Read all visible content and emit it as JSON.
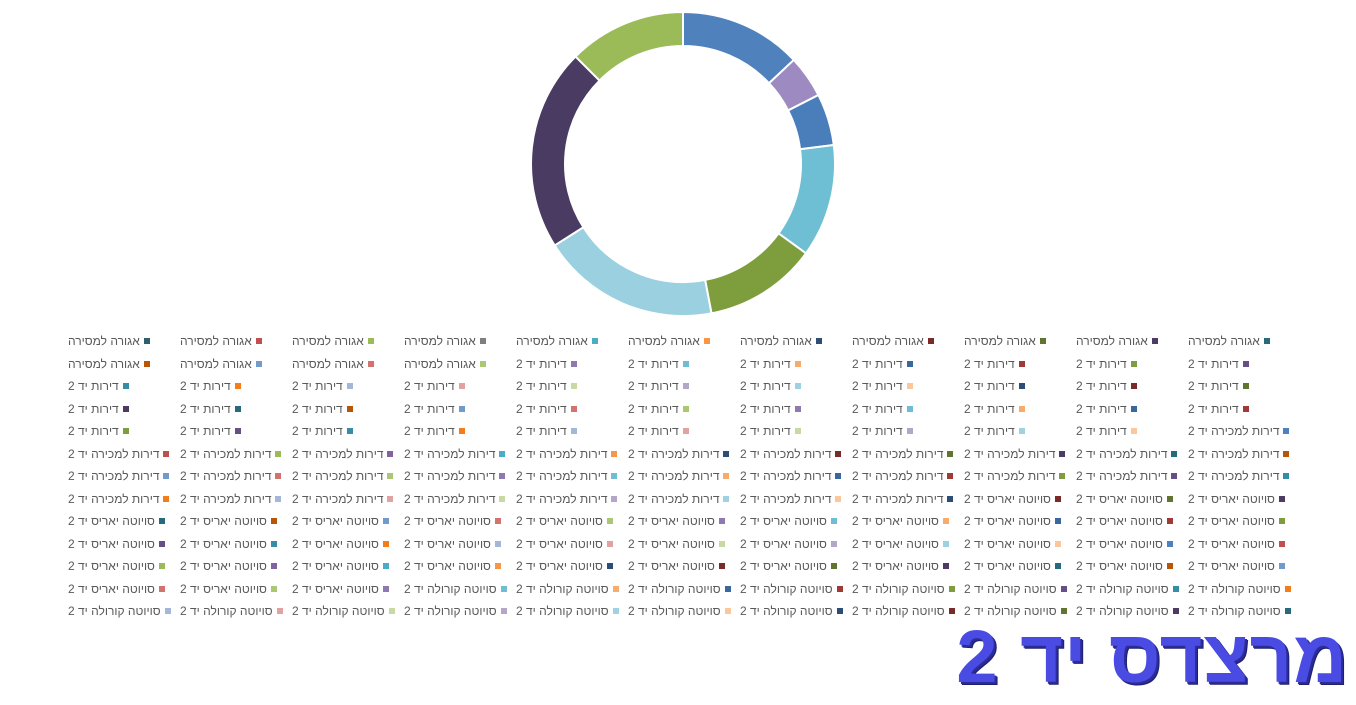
{
  "chart_data": {
    "type": "pie",
    "variant": "doughnut",
    "slices": [
      {
        "value": 13.0,
        "color": "#4f81bd"
      },
      {
        "value": 4.5,
        "color": "#9d8ac1"
      },
      {
        "value": 5.5,
        "color": "#4a7ebb"
      },
      {
        "value": 12.0,
        "color": "#6fbfd4"
      },
      {
        "value": 12.0,
        "color": "#7e9e3e"
      },
      {
        "value": 19.0,
        "color": "#9ad0e0"
      },
      {
        "value": 21.5,
        "color": "#4a3b63"
      },
      {
        "value": 12.5,
        "color": "#9bbb59"
      }
    ],
    "legend_position": "bottom",
    "legend_columns": 11,
    "legend": [
      {
        "label": "אגורה למסירה",
        "color": "#2f5f6b"
      },
      {
        "label": "אגורה למסירה",
        "color": "#c0504d"
      },
      {
        "label": "אגורה למסירה",
        "color": "#9bbb59"
      },
      {
        "label": "אגורה למסירה",
        "color": "#7f7f7f"
      },
      {
        "label": "אגורה למסירה",
        "color": "#4bacc6"
      },
      {
        "label": "אגורה למסירה",
        "color": "#f79646"
      },
      {
        "label": "אגורה למסירה",
        "color": "#2c4d75"
      },
      {
        "label": "אגורה למסירה",
        "color": "#772c2a"
      },
      {
        "label": "אגורה למסירה",
        "color": "#5f7530"
      },
      {
        "label": "אגורה למסירה",
        "color": "#4d3b62"
      },
      {
        "label": "אגורה למסירה",
        "color": "#276a7c"
      },
      {
        "label": "אגורה למסירה",
        "color": "#b65708"
      },
      {
        "label": "אגורה למסירה",
        "color": "#729aca"
      },
      {
        "label": "אגורה למסירה",
        "color": "#d47270"
      },
      {
        "label": "אגורה למסירה",
        "color": "#acc774"
      },
      {
        "label": "דירות יד 2",
        "color": "#8e7aae"
      },
      {
        "label": "דירות יד 2",
        "color": "#6fbcd4"
      },
      {
        "label": "דירות יד 2",
        "color": "#f9ab6b"
      },
      {
        "label": "דירות יד 2",
        "color": "#3a679c"
      },
      {
        "label": "דירות יד 2",
        "color": "#9e3b38"
      },
      {
        "label": "דירות יד 2",
        "color": "#7e9c40"
      },
      {
        "label": "דירות יד 2",
        "color": "#664f83"
      },
      {
        "label": "דירות יד 2",
        "color": "#358ea6"
      },
      {
        "label": "דירות יד 2",
        "color": "#f37c1b"
      },
      {
        "label": "דירות יד 2",
        "color": "#a3b7d9"
      },
      {
        "label": "דירות יד 2",
        "color": "#e0a3a2"
      },
      {
        "label": "דירות יד 2",
        "color": "#c8d9a4"
      },
      {
        "label": "דירות יד 2",
        "color": "#b2a6c9"
      },
      {
        "label": "דירות יד 2",
        "color": "#9fd1e2"
      },
      {
        "label": "דירות יד 2",
        "color": "#fbc79c"
      },
      {
        "label": "דירות יד 2",
        "color": "#2c4d75"
      },
      {
        "label": "דירות יד 2",
        "color": "#772c2a"
      },
      {
        "label": "דירות יד 2",
        "color": "#5f7530"
      },
      {
        "label": "דירות יד 2",
        "color": "#4d3b62"
      },
      {
        "label": "דירות יד 2",
        "color": "#276a7c"
      },
      {
        "label": "דירות יד 2",
        "color": "#b65708"
      },
      {
        "label": "דירות יד 2",
        "color": "#729aca"
      },
      {
        "label": "דירות יד 2",
        "color": "#d47270"
      },
      {
        "label": "דירות יד 2",
        "color": "#acc774"
      },
      {
        "label": "דירות יד 2",
        "color": "#8e7aae"
      },
      {
        "label": "דירות יד 2",
        "color": "#6fbcd4"
      },
      {
        "label": "דירות יד 2",
        "color": "#f9ab6b"
      },
      {
        "label": "דירות יד 2",
        "color": "#3a679c"
      },
      {
        "label": "דירות יד 2",
        "color": "#9e3b38"
      },
      {
        "label": "דירות יד 2",
        "color": "#7e9c40"
      },
      {
        "label": "דירות יד 2",
        "color": "#664f83"
      },
      {
        "label": "דירות יד 2",
        "color": "#358ea6"
      },
      {
        "label": "דירות יד 2",
        "color": "#f37c1b"
      },
      {
        "label": "דירות יד 2",
        "color": "#a3b7d9"
      },
      {
        "label": "דירות יד 2",
        "color": "#e0a3a2"
      },
      {
        "label": "דירות יד 2",
        "color": "#c8d9a4"
      },
      {
        "label": "דירות יד 2",
        "color": "#b2a6c9"
      },
      {
        "label": "דירות יד 2",
        "color": "#9fd1e2"
      },
      {
        "label": "דירות יד 2",
        "color": "#fbc79c"
      },
      {
        "label": "דירות למכירה יד 2",
        "color": "#4f81bd"
      },
      {
        "label": "דירות למכירה יד 2",
        "color": "#c0504d"
      },
      {
        "label": "דירות למכירה יד 2",
        "color": "#9bbb59"
      },
      {
        "label": "דירות למכירה יד 2",
        "color": "#8064a2"
      },
      {
        "label": "דירות למכירה יד 2",
        "color": "#4bacc6"
      },
      {
        "label": "דירות למכירה יד 2",
        "color": "#f79646"
      },
      {
        "label": "דירות למכירה יד 2",
        "color": "#2c4d75"
      },
      {
        "label": "דירות למכירה יד 2",
        "color": "#772c2a"
      },
      {
        "label": "דירות למכירה יד 2",
        "color": "#5f7530"
      },
      {
        "label": "דירות למכירה יד 2",
        "color": "#4d3b62"
      },
      {
        "label": "דירות למכירה יד 2",
        "color": "#276a7c"
      },
      {
        "label": "דירות למכירה יד 2",
        "color": "#b65708"
      },
      {
        "label": "דירות למכירה יד 2",
        "color": "#729aca"
      },
      {
        "label": "דירות למכירה יד 2",
        "color": "#d47270"
      },
      {
        "label": "דירות למכירה יד 2",
        "color": "#acc774"
      },
      {
        "label": "דירות למכירה יד 2",
        "color": "#8e7aae"
      },
      {
        "label": "דירות למכירה יד 2",
        "color": "#6fbcd4"
      },
      {
        "label": "דירות למכירה יד 2",
        "color": "#f9ab6b"
      },
      {
        "label": "דירות למכירה יד 2",
        "color": "#3a679c"
      },
      {
        "label": "דירות למכירה יד 2",
        "color": "#9e3b38"
      },
      {
        "label": "דירות למכירה יד 2",
        "color": "#7e9c40"
      },
      {
        "label": "דירות למכירה יד 2",
        "color": "#664f83"
      },
      {
        "label": "דירות למכירה יד 2",
        "color": "#358ea6"
      },
      {
        "label": "דירות למכירה יד 2",
        "color": "#f37c1b"
      },
      {
        "label": "דירות למכירה יד 2",
        "color": "#a3b7d9"
      },
      {
        "label": "דירות למכירה יד 2",
        "color": "#e0a3a2"
      },
      {
        "label": "דירות למכירה יד 2",
        "color": "#c8d9a4"
      },
      {
        "label": "דירות למכירה יד 2",
        "color": "#b2a6c9"
      },
      {
        "label": "דירות למכירה יד 2",
        "color": "#9fd1e2"
      },
      {
        "label": "דירות למכירה יד 2",
        "color": "#fbc79c"
      },
      {
        "label": "דירות למכירה יד 2",
        "color": "#2c4d75"
      },
      {
        "label": "סויוטה יאריס יד 2",
        "color": "#772c2a"
      },
      {
        "label": "סויוטה יאריס יד 2",
        "color": "#5f7530"
      },
      {
        "label": "סויוטה יאריס יד 2",
        "color": "#4d3b62"
      },
      {
        "label": "סויוטה יאריס יד 2",
        "color": "#276a7c"
      },
      {
        "label": "סויוטה יאריס יד 2",
        "color": "#b65708"
      },
      {
        "label": "סויוטה יאריס יד 2",
        "color": "#729aca"
      },
      {
        "label": "סויוטה יאריס יד 2",
        "color": "#d47270"
      },
      {
        "label": "סויוטה יאריס יד 2",
        "color": "#acc774"
      },
      {
        "label": "סויוטה יאריס יד 2",
        "color": "#8e7aae"
      },
      {
        "label": "סויוטה יאריס יד 2",
        "color": "#6fbcd4"
      },
      {
        "label": "סויוטה יאריס יד 2",
        "color": "#f9ab6b"
      },
      {
        "label": "סויוטה יאריס יד 2",
        "color": "#3a679c"
      },
      {
        "label": "סויוטה יאריס יד 2",
        "color": "#9e3b38"
      },
      {
        "label": "סויוטה יאריס יד 2",
        "color": "#7e9c40"
      },
      {
        "label": "סויוטה יאריס יד 2",
        "color": "#664f83"
      },
      {
        "label": "סויוטה יאריס יד 2",
        "color": "#358ea6"
      },
      {
        "label": "סויוטה יאריס יד 2",
        "color": "#f37c1b"
      },
      {
        "label": "סויוטה יאריס יד 2",
        "color": "#a3b7d9"
      },
      {
        "label": "סויוטה יאריס יד 2",
        "color": "#e0a3a2"
      },
      {
        "label": "סויוטה יאריס יד 2",
        "color": "#c8d9a4"
      },
      {
        "label": "סויוטה יאריס יד 2",
        "color": "#b2a6c9"
      },
      {
        "label": "סויוטה יאריס יד 2",
        "color": "#9fd1e2"
      },
      {
        "label": "סויוטה יאריס יד 2",
        "color": "#fbc79c"
      },
      {
        "label": "סויוטה יאריס יד 2",
        "color": "#4f81bd"
      },
      {
        "label": "סויוטה יאריס יד 2",
        "color": "#c0504d"
      },
      {
        "label": "סויוטה יאריס יד 2",
        "color": "#9bbb59"
      },
      {
        "label": "סויוטה יאריס יד 2",
        "color": "#8064a2"
      },
      {
        "label": "סויוטה יאריס יד 2",
        "color": "#4bacc6"
      },
      {
        "label": "סויוטה יאריס יד 2",
        "color": "#f79646"
      },
      {
        "label": "סויוטה יאריס יד 2",
        "color": "#2c4d75"
      },
      {
        "label": "סויוטה יאריס יד 2",
        "color": "#772c2a"
      },
      {
        "label": "סויוטה יאריס יד 2",
        "color": "#5f7530"
      },
      {
        "label": "סויוטה יאריס יד 2",
        "color": "#4d3b62"
      },
      {
        "label": "סויוטה יאריס יד 2",
        "color": "#276a7c"
      },
      {
        "label": "סויוטה יאריס יד 2",
        "color": "#b65708"
      },
      {
        "label": "סויוטה יאריס יד 2",
        "color": "#729aca"
      },
      {
        "label": "סויוטה יאריס יד 2",
        "color": "#d47270"
      },
      {
        "label": "סויוטה יאריס יד 2",
        "color": "#acc774"
      },
      {
        "label": "סויוטה יאריס יד 2",
        "color": "#8e7aae"
      },
      {
        "label": "סויוטה קורולה יד 2",
        "color": "#6fbcd4"
      },
      {
        "label": "סויוטה קורולה יד 2",
        "color": "#f9ab6b"
      },
      {
        "label": "סויוטה קורולה יד 2",
        "color": "#3a679c"
      },
      {
        "label": "סויוטה קורולה יד 2",
        "color": "#9e3b38"
      },
      {
        "label": "סויוטה קורולה יד 2",
        "color": "#7e9c40"
      },
      {
        "label": "סויוטה קורולה יד 2",
        "color": "#664f83"
      },
      {
        "label": "סויוטה קורולה יד 2",
        "color": "#358ea6"
      },
      {
        "label": "סויוטה קורולה יד 2",
        "color": "#f37c1b"
      },
      {
        "label": "סויוטה קורולה יד 2",
        "color": "#a3b7d9"
      },
      {
        "label": "סויוטה קורולה יד 2",
        "color": "#e0a3a2"
      },
      {
        "label": "סויוטה קורולה יד 2",
        "color": "#c8d9a4"
      },
      {
        "label": "סויוטה קורולה יד 2",
        "color": "#b2a6c9"
      },
      {
        "label": "סויוטה קורולה יד 2",
        "color": "#9fd1e2"
      },
      {
        "label": "סויוטה קורולה יד 2",
        "color": "#fbc79c"
      },
      {
        "label": "סויוטה קורולה יד 2",
        "color": "#2c4d75"
      },
      {
        "label": "סויוטה קורולה יד 2",
        "color": "#772c2a"
      },
      {
        "label": "סויוטה קורולה יד 2",
        "color": "#5f7530"
      },
      {
        "label": "סויוטה קורולה יד 2",
        "color": "#4d3b62"
      },
      {
        "label": "סויוטה קורולה יד 2",
        "color": "#276a7c"
      }
    ]
  },
  "brand": {
    "title": "מרצדס יד 2",
    "color": "#4a4be3"
  }
}
